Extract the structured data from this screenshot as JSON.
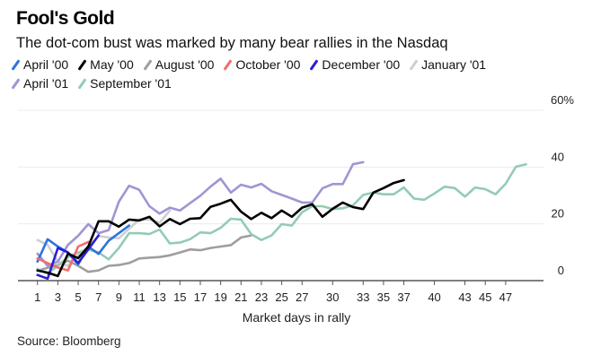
{
  "title": "Fool's Gold",
  "subtitle": "The dot-com bust was marked by many bear rallies in the Nasdaq",
  "source": "Source: Bloomberg",
  "chart_data": {
    "type": "line",
    "title": "Fool's Gold",
    "subtitle": "The dot-com bust was marked by many bear rallies in the Nasdaq",
    "xlabel": "Market days in rally",
    "ylabel": "",
    "xlim": [
      1,
      50
    ],
    "ylim": [
      0,
      60
    ],
    "x_ticks": [
      1,
      3,
      5,
      7,
      9,
      11,
      13,
      15,
      17,
      19,
      21,
      23,
      25,
      27,
      30,
      33,
      35,
      37,
      40,
      43,
      45,
      47
    ],
    "y_ticks": [
      0,
      20,
      40,
      60
    ],
    "y_tick_labels": [
      "0",
      "20",
      "40",
      "60%"
    ],
    "grid": true,
    "legend_position": "top-left",
    "series": [
      {
        "name": "April '00",
        "color": "#2b74e0",
        "values": [
          6.7,
          14.6,
          12.0,
          9.9,
          5.7,
          12.0,
          9.4,
          14.1,
          16.7,
          19.4
        ]
      },
      {
        "name": "May '00",
        "color": "#000000",
        "values": [
          3.6,
          2.8,
          1.6,
          9.5,
          7.9,
          12.0,
          20.9,
          20.9,
          19.0,
          21.5,
          21.2,
          22.5,
          19.1,
          21.7,
          19.9,
          21.8,
          22.0,
          26.0,
          27.1,
          28.5,
          24.3,
          21.7,
          23.9,
          22.0,
          24.7,
          22.5,
          25.7,
          26.9,
          22.5,
          25.3,
          27.5,
          25.9,
          25.2,
          31.0,
          32.6,
          34.4,
          35.4
        ]
      },
      {
        "name": "August '00",
        "color": "#9e9e9e",
        "values": [
          3.5,
          4.5,
          5.5,
          7.0,
          5.2,
          3.1,
          3.6,
          5.2,
          5.5,
          6.2,
          7.8,
          8.1,
          8.3,
          8.9,
          9.9,
          11.0,
          10.7,
          11.5,
          12.0,
          12.5,
          15.2,
          15.9
        ]
      },
      {
        "name": "October '00",
        "color": "#f26d6d",
        "values": [
          7.8,
          6.2,
          4.6,
          3.6,
          12.0,
          13.6
        ]
      },
      {
        "name": "December '00",
        "color": "#2b1fd1",
        "values": [
          2.0,
          0.7,
          11.5,
          9.9,
          6.2,
          11.0,
          15.9
        ]
      },
      {
        "name": "January '01",
        "color": "#cfcfcf",
        "values": [
          14.3,
          12.6,
          6.7,
          5.2,
          8.9,
          12.0,
          15.7,
          15.2,
          14.9,
          18.3,
          21.5,
          21.5,
          20.4,
          24.7
        ]
      },
      {
        "name": "April '01",
        "color": "#9f95d4",
        "values": [
          9.5,
          5.2,
          6.7,
          12.6,
          15.8,
          19.9,
          16.7,
          17.8,
          27.8,
          33.4,
          32.0,
          26.2,
          23.6,
          25.7,
          24.7,
          27.3,
          29.9,
          33.1,
          35.9,
          31.0,
          33.8,
          32.8,
          34.1,
          31.5,
          30.2,
          28.9,
          27.5,
          27.5,
          32.5,
          34.0,
          34.0,
          41.0,
          41.7
        ]
      },
      {
        "name": "September '01",
        "color": "#93cbb6",
        "values": [
          4.1,
          2.5,
          5.2,
          8.3,
          9.9,
          11.0,
          9.9,
          7.5,
          11.5,
          16.7,
          16.7,
          16.4,
          18.0,
          13.1,
          13.4,
          14.6,
          17.0,
          16.7,
          18.6,
          21.8,
          21.5,
          16.4,
          14.3,
          15.9,
          19.9,
          19.4,
          24.1,
          26.2,
          26.2,
          25.2,
          25.5,
          26.5,
          30.2,
          31.0,
          30.4,
          30.4,
          32.8,
          28.9,
          28.5,
          30.7,
          33.1,
          32.6,
          29.6,
          32.8,
          32.2,
          30.4,
          34.1,
          40.1,
          41.0
        ]
      }
    ]
  }
}
